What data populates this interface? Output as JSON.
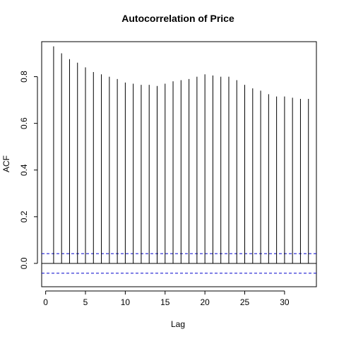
{
  "chart_data": {
    "type": "bar",
    "title": "Autocorrelation of Price",
    "xlabel": "Lag",
    "ylabel": "ACF",
    "xlim": [
      -0.5,
      34
    ],
    "ylim": [
      -0.1,
      0.95
    ],
    "x_ticks": [
      0,
      5,
      10,
      15,
      20,
      25,
      30
    ],
    "x_tick_labels": [
      "0",
      "5",
      "10",
      "15",
      "20",
      "25",
      "30"
    ],
    "y_ticks": [
      0.0,
      0.2,
      0.4,
      0.6,
      0.8
    ],
    "y_tick_labels": [
      "0.0",
      "0.2",
      "0.4",
      "0.6",
      "0.8"
    ],
    "lags": [
      1,
      2,
      3,
      4,
      5,
      6,
      7,
      8,
      9,
      10,
      11,
      12,
      13,
      14,
      15,
      16,
      17,
      18,
      19,
      20,
      21,
      22,
      23,
      24,
      25,
      26,
      27,
      28,
      29,
      30,
      31,
      32,
      33
    ],
    "values": [
      0.93,
      0.9,
      0.875,
      0.86,
      0.84,
      0.82,
      0.81,
      0.8,
      0.79,
      0.775,
      0.77,
      0.765,
      0.765,
      0.76,
      0.77,
      0.78,
      0.785,
      0.79,
      0.8,
      0.81,
      0.805,
      0.8,
      0.8,
      0.785,
      0.765,
      0.75,
      0.74,
      0.725,
      0.715,
      0.715,
      0.71,
      0.705,
      0.705
    ],
    "confidence_bounds": [
      0.042,
      -0.042
    ],
    "colors": {
      "stems": "#000000",
      "zero_line": "#000000",
      "confidence": "#0000cc",
      "frame": "#000000"
    },
    "grid": false
  }
}
